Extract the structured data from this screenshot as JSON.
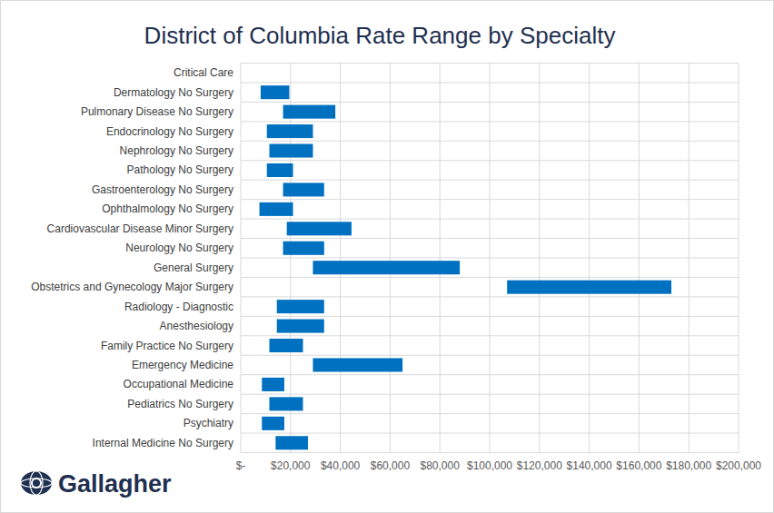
{
  "chart_data": {
    "type": "bar",
    "orientation": "horizontal",
    "title": "District of Columbia Rate Range by Specialty",
    "logo": "Gallagher",
    "categories": [
      "Critical Care",
      "Dermatology No Surgery",
      "Pulmonary Disease No Surgery",
      "Endocrinology No Surgery",
      "Nephrology No Surgery",
      "Pathology No Surgery",
      "Gastroenterology No Surgery",
      "Ophthalmology No Surgery",
      "Cardiovascular Disease Minor Surgery",
      "Neurology No Surgery",
      "General Surgery",
      "Obstetrics and Gynecology Major Surgery",
      "Radiology - Diagnostic",
      "Anesthesiology",
      "Family Practice No Surgery",
      "Emergency Medicine",
      "Occupational Medicine",
      "Pediatrics No Surgery",
      "Psychiatry",
      "Internal Medicine No Surgery"
    ],
    "values": [
      null,
      [
        8000,
        19500
      ],
      [
        17000,
        38000
      ],
      [
        10500,
        29000
      ],
      [
        11500,
        29000
      ],
      [
        10500,
        21000
      ],
      [
        17000,
        33500
      ],
      [
        7500,
        21000
      ],
      [
        18500,
        44500
      ],
      [
        17000,
        33500
      ],
      [
        29000,
        88000
      ],
      [
        107000,
        173000
      ],
      [
        14500,
        33500
      ],
      [
        14500,
        33500
      ],
      [
        11500,
        25000
      ],
      [
        29000,
        65000
      ],
      [
        8500,
        17500
      ],
      [
        11500,
        25000
      ],
      [
        8500,
        17500
      ],
      [
        14000,
        27000
      ]
    ],
    "color": "#0070c0",
    "xlim": [
      0,
      200000
    ],
    "xticks": [
      {
        "value": 0,
        "label": "$-"
      },
      {
        "value": 20000,
        "label": "$20,000"
      },
      {
        "value": 40000,
        "label": "$40,000"
      },
      {
        "value": 60000,
        "label": "$60,000"
      },
      {
        "value": 80000,
        "label": "$80,000"
      },
      {
        "value": 100000,
        "label": "$100,000"
      },
      {
        "value": 120000,
        "label": "$120,000"
      },
      {
        "value": 140000,
        "label": "$140,000"
      },
      {
        "value": 160000,
        "label": "$160,000"
      },
      {
        "value": 180000,
        "label": "$180,000"
      },
      {
        "value": 200000,
        "label": "$200,000"
      }
    ],
    "grid": true
  }
}
